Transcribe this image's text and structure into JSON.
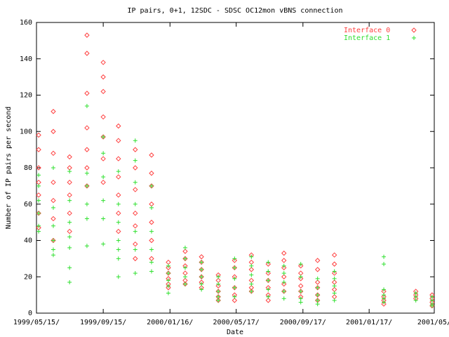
{
  "chart_data": {
    "type": "scatter",
    "title": "IP pairs, 0+1, 12SDC - SDSC OC12mon vBNS connection",
    "x_label": "Date",
    "y_label": "Number of IP pairs per second",
    "xlim": [
      "1999/05/15",
      "2001/05/17"
    ],
    "ylim": [
      0,
      160
    ],
    "xticks": [
      {
        "value": "1999/05/15",
        "label": "1999/05/15/"
      },
      {
        "value": "1999/09/15",
        "label": "1999/09/15/"
      },
      {
        "value": "2000/01/16",
        "label": "2000/01/16/"
      },
      {
        "value": "2000/05/17",
        "label": "2000/05/17/"
      },
      {
        "value": "2000/09/17",
        "label": "2000/09/17/"
      },
      {
        "value": "2001/01/17",
        "label": "2001/01/17/"
      },
      {
        "value": "2001/05/17",
        "label": "2001/05/"
      }
    ],
    "yticks": [
      0,
      20,
      40,
      60,
      80,
      100,
      120,
      140,
      160
    ],
    "legend": "top-right",
    "series": [
      {
        "name": "Interface 0",
        "color": "#ff4040",
        "marker": "diamond",
        "x": [
          "1999/05/19",
          "1999/05/19",
          "1999/05/19",
          "1999/05/19",
          "1999/05/19",
          "1999/05/19",
          "1999/05/19",
          "1999/06/15",
          "1999/06/15",
          "1999/06/15",
          "1999/06/15",
          "1999/06/15",
          "1999/06/15",
          "1999/06/15",
          "1999/07/15",
          "1999/07/15",
          "1999/07/15",
          "1999/07/15",
          "1999/07/15",
          "1999/07/15",
          "1999/08/16",
          "1999/08/16",
          "1999/08/16",
          "1999/08/16",
          "1999/08/16",
          "1999/08/16",
          "1999/08/16",
          "1999/09/15",
          "1999/09/15",
          "1999/09/15",
          "1999/09/15",
          "1999/09/15",
          "1999/09/15",
          "1999/09/15",
          "1999/10/13",
          "1999/10/13",
          "1999/10/13",
          "1999/10/13",
          "1999/10/13",
          "1999/10/13",
          "1999/10/13",
          "1999/11/13",
          "1999/11/13",
          "1999/11/13",
          "1999/11/13",
          "1999/11/13",
          "1999/11/13",
          "1999/11/13",
          "1999/12/13",
          "1999/12/13",
          "1999/12/13",
          "1999/12/13",
          "1999/12/13",
          "1999/12/13",
          "1999/12/13",
          "2000/01/13",
          "2000/01/13",
          "2000/01/13",
          "2000/01/13",
          "2000/01/13",
          "2000/01/13",
          "2000/02/13",
          "2000/02/13",
          "2000/02/13",
          "2000/02/13",
          "2000/02/13",
          "2000/02/13",
          "2000/03/14",
          "2000/03/14",
          "2000/03/14",
          "2000/03/14",
          "2000/03/14",
          "2000/03/14",
          "2000/04/14",
          "2000/04/14",
          "2000/04/14",
          "2000/04/14",
          "2000/04/14",
          "2000/04/14",
          "2000/05/14",
          "2000/05/14",
          "2000/05/14",
          "2000/05/14",
          "2000/05/14",
          "2000/05/14",
          "2000/06/14",
          "2000/06/14",
          "2000/06/14",
          "2000/06/14",
          "2000/06/14",
          "2000/06/14",
          "2000/07/15",
          "2000/07/15",
          "2000/07/15",
          "2000/07/15",
          "2000/07/15",
          "2000/07/15",
          "2000/08/13",
          "2000/08/13",
          "2000/08/13",
          "2000/08/13",
          "2000/08/13",
          "2000/08/13",
          "2000/09/13",
          "2000/09/13",
          "2000/09/13",
          "2000/09/13",
          "2000/09/13",
          "2000/09/13",
          "2000/10/14",
          "2000/10/14",
          "2000/10/14",
          "2000/10/14",
          "2000/10/14",
          "2000/10/14",
          "2000/11/14",
          "2000/11/14",
          "2000/11/14",
          "2000/11/14",
          "2000/11/14",
          "2000/11/14",
          "2001/02/13",
          "2001/02/13",
          "2001/02/13",
          "2001/02/13",
          "2001/04/13",
          "2001/04/13",
          "2001/04/13",
          "2001/05/13",
          "2001/05/13",
          "2001/05/13",
          "2001/05/13"
        ],
        "values": [
          98,
          90,
          80,
          72,
          65,
          55,
          47,
          111,
          100,
          88,
          72,
          62,
          52,
          40,
          86,
          80,
          72,
          65,
          55,
          45,
          153,
          143,
          121,
          102,
          90,
          80,
          70,
          138,
          130,
          122,
          108,
          97,
          85,
          72,
          103,
          95,
          85,
          75,
          65,
          55,
          45,
          90,
          80,
          68,
          55,
          48,
          38,
          30,
          87,
          77,
          70,
          60,
          50,
          40,
          30,
          28,
          25,
          22,
          19,
          16,
          14,
          34,
          30,
          26,
          22,
          18,
          16,
          31,
          28,
          24,
          20,
          17,
          14,
          21,
          18,
          15,
          12,
          9,
          7,
          29,
          25,
          20,
          14,
          10,
          7,
          32,
          28,
          24,
          18,
          14,
          12,
          27,
          22,
          18,
          14,
          10,
          7,
          33,
          29,
          25,
          20,
          16,
          12,
          26,
          22,
          19,
          15,
          12,
          9,
          29,
          24,
          17,
          14,
          10,
          7,
          32,
          27,
          22,
          17,
          13,
          9,
          12,
          9,
          7,
          5,
          12,
          10,
          8,
          10,
          8,
          6,
          4
        ]
      },
      {
        "name": "Interface 1",
        "color": "#30e030",
        "marker": "plus",
        "x": [
          "1999/05/19",
          "1999/05/19",
          "1999/05/19",
          "1999/05/19",
          "1999/05/19",
          "1999/05/19",
          "1999/06/15",
          "1999/06/15",
          "1999/06/15",
          "1999/06/15",
          "1999/06/15",
          "1999/06/15",
          "1999/07/15",
          "1999/07/15",
          "1999/07/15",
          "1999/07/15",
          "1999/07/15",
          "1999/07/15",
          "1999/07/15",
          "1999/08/16",
          "1999/08/16",
          "1999/08/16",
          "1999/08/16",
          "1999/08/16",
          "1999/08/16",
          "1999/09/15",
          "1999/09/15",
          "1999/09/15",
          "1999/09/15",
          "1999/09/15",
          "1999/09/15",
          "1999/10/13",
          "1999/10/13",
          "1999/10/13",
          "1999/10/13",
          "1999/10/13",
          "1999/10/13",
          "1999/10/13",
          "1999/11/13",
          "1999/11/13",
          "1999/11/13",
          "1999/11/13",
          "1999/11/13",
          "1999/11/13",
          "1999/11/13",
          "1999/12/13",
          "1999/12/13",
          "1999/12/13",
          "1999/12/13",
          "1999/12/13",
          "1999/12/13",
          "2000/01/13",
          "2000/01/13",
          "2000/01/13",
          "2000/01/13",
          "2000/01/13",
          "2000/02/13",
          "2000/02/13",
          "2000/02/13",
          "2000/02/13",
          "2000/02/13",
          "2000/03/14",
          "2000/03/14",
          "2000/03/14",
          "2000/03/14",
          "2000/03/14",
          "2000/04/14",
          "2000/04/14",
          "2000/04/14",
          "2000/04/14",
          "2000/04/14",
          "2000/05/14",
          "2000/05/14",
          "2000/05/14",
          "2000/05/14",
          "2000/05/14",
          "2000/06/14",
          "2000/06/14",
          "2000/06/14",
          "2000/06/14",
          "2000/06/14",
          "2000/07/15",
          "2000/07/15",
          "2000/07/15",
          "2000/07/15",
          "2000/07/15",
          "2000/08/13",
          "2000/08/13",
          "2000/08/13",
          "2000/08/13",
          "2000/08/13",
          "2000/09/13",
          "2000/09/13",
          "2000/09/13",
          "2000/09/13",
          "2000/09/13",
          "2000/10/14",
          "2000/10/14",
          "2000/10/14",
          "2000/10/14",
          "2000/10/14",
          "2000/11/14",
          "2000/11/14",
          "2000/11/14",
          "2000/11/14",
          "2000/11/14",
          "2001/02/13",
          "2001/02/13",
          "2001/02/13",
          "2001/02/13",
          "2001/02/13",
          "2001/02/13",
          "2001/04/13",
          "2001/04/13",
          "2001/04/13",
          "2001/05/13",
          "2001/05/13",
          "2001/05/13",
          "2001/05/13"
        ],
        "values": [
          76,
          70,
          62,
          55,
          48,
          45,
          80,
          58,
          48,
          40,
          35,
          32,
          78,
          62,
          50,
          42,
          36,
          25,
          17,
          114,
          77,
          70,
          60,
          52,
          37,
          97,
          88,
          75,
          62,
          52,
          38,
          78,
          60,
          50,
          40,
          35,
          30,
          20,
          95,
          84,
          72,
          60,
          45,
          35,
          22,
          70,
          58,
          45,
          35,
          28,
          23,
          26,
          22,
          18,
          15,
          11,
          36,
          30,
          25,
          20,
          16,
          28,
          24,
          20,
          16,
          13,
          20,
          16,
          12,
          9,
          7,
          30,
          25,
          19,
          14,
          9,
          31,
          26,
          21,
          16,
          12,
          28,
          23,
          18,
          13,
          9,
          26,
          22,
          17,
          12,
          8,
          27,
          20,
          12,
          8,
          6,
          19,
          14,
          10,
          7,
          5,
          23,
          19,
          15,
          11,
          7,
          31,
          27,
          13,
          10,
          8,
          6,
          11,
          9,
          7,
          9,
          7,
          5,
          4
        ]
      }
    ]
  }
}
